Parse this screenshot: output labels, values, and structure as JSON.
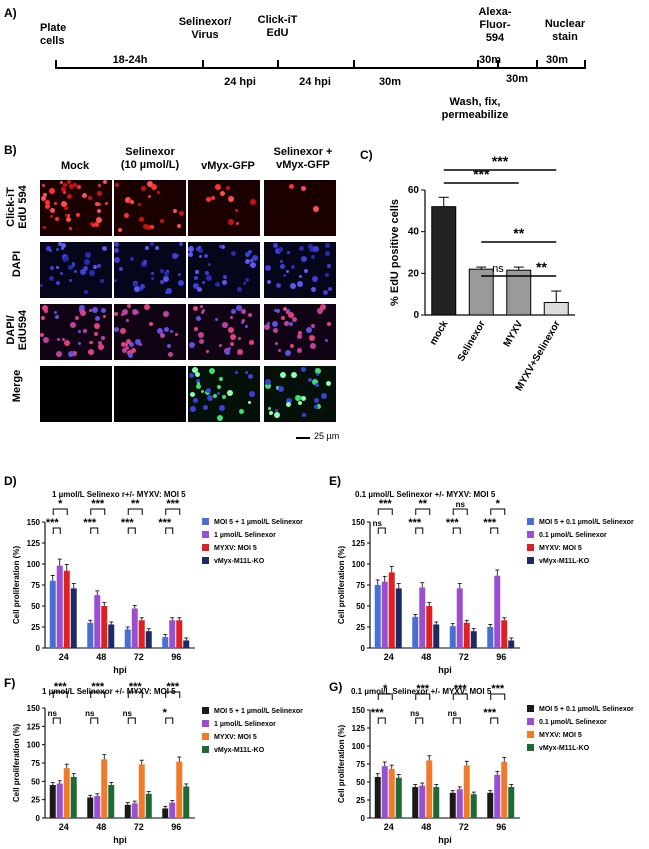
{
  "panel_letters": {
    "a": "A)",
    "b": "B)",
    "c": "C)",
    "d": "D)",
    "e": "E)",
    "f": "F)",
    "g": "G)"
  },
  "timeline": {
    "events_top": [
      "Plate\ncells",
      "Selinexor/\nVirus",
      "Click-iT\nEdU",
      "Alexa-\nFluor-\n594",
      "Nuclear\nstain"
    ],
    "interval_18": "18-24h",
    "interval_24a": "24 hpi",
    "interval_24b": "24 hpi",
    "interval_30a": "30m",
    "interval_30b": "30m",
    "interval_30c": "30m",
    "interval_30d": "30m",
    "wash": "Wash, fix,\npermeabilize"
  },
  "microscopy": {
    "columns": [
      "Mock",
      "Selinexor\n(10 µmol/L)",
      "vMyx-GFP",
      "Selinexor +\nvMyx-GFP"
    ],
    "rows": [
      "Click-iT\nEdU 594",
      "DAPI",
      "DAPI/\nEdU594",
      "Merge"
    ],
    "scale_bar": "25 µm"
  },
  "chart_data": [
    {
      "id": "C",
      "type": "bar",
      "categories": [
        "mock",
        "Selinexor",
        "MYXV",
        "MYXV+Selinexor"
      ],
      "values": [
        52,
        22,
        21.5,
        6
      ],
      "errors": [
        4.5,
        1,
        1.5,
        5.5
      ],
      "colors": [
        "#222222",
        "#9a9a9a",
        "#9a9a9a",
        "#dddddd"
      ],
      "ylabel": "% EdU positive cells",
      "ylim": [
        0,
        60
      ],
      "yticks": [
        0,
        20,
        40,
        60
      ],
      "significance": [
        {
          "from": 0,
          "to": 3,
          "label": "***"
        },
        {
          "from": 0,
          "to": 2,
          "label": "***"
        },
        {
          "from": 1,
          "to": 3,
          "label": "**"
        },
        {
          "from": 1,
          "to": 2,
          "label": "ns"
        },
        {
          "from": 2,
          "to": 3,
          "label": "**"
        }
      ]
    },
    {
      "id": "D",
      "type": "bar",
      "title": "1 µmol/L Selinexo r+/- MYXV: MOI 5",
      "categories": [
        "24",
        "48",
        "72",
        "96"
      ],
      "xlabel": "hpi",
      "ylabel": "Cell proliferation (%)",
      "ylim": [
        0,
        150
      ],
      "yticks": [
        0,
        25,
        50,
        75,
        100,
        125,
        150
      ],
      "series": [
        {
          "name": "MOI 5 + 1 µmol/L Selinexor",
          "color": "#4a6fd4",
          "values": [
            80,
            30,
            22,
            13
          ]
        },
        {
          "name": "1 µmol/L Selinexor",
          "color": "#9b4fd0",
          "values": [
            98,
            63,
            47,
            33
          ]
        },
        {
          "name": "MYXV: MOI 5",
          "color": "#e02020",
          "values": [
            92,
            50,
            33,
            33
          ]
        },
        {
          "name": "vMyx-M11L-KO",
          "color": "#1c2a66",
          "values": [
            71,
            28,
            20,
            9
          ]
        }
      ],
      "sig_top": [
        "*",
        "***",
        "**",
        "***"
      ],
      "sig_bottom": [
        "***",
        "***",
        "***",
        "***"
      ]
    },
    {
      "id": "E",
      "type": "bar",
      "title": "0.1 µmol/L Selinexor +/- MYXV: MOI 5",
      "categories": [
        "24",
        "48",
        "72",
        "96"
      ],
      "xlabel": "hpi",
      "ylabel": "Cell proliferation (%)",
      "ylim": [
        0,
        150
      ],
      "yticks": [
        0,
        25,
        50,
        75,
        100,
        125,
        150
      ],
      "series": [
        {
          "name": "MOI 5 + 0.1 µmol/L Selinexor",
          "color": "#4a6fd4",
          "values": [
            75,
            37,
            26,
            25
          ]
        },
        {
          "name": "0.1 µmol/L Selinexor",
          "color": "#9b4fd0",
          "values": [
            79,
            72,
            71,
            86
          ]
        },
        {
          "name": "MYXV: MOI 5",
          "color": "#e02020",
          "values": [
            90,
            50,
            30,
            33
          ]
        },
        {
          "name": "vMyx-M11L-KO",
          "color": "#1c2a66",
          "values": [
            71,
            28,
            20,
            9
          ]
        }
      ],
      "sig_top": [
        "***",
        "**",
        "ns",
        "*"
      ],
      "sig_bottom": [
        "ns",
        "***",
        "***",
        "***"
      ]
    },
    {
      "id": "F",
      "type": "bar",
      "title": "1 µmol/L Selinexor +/- MYXV: MOI 5",
      "categories": [
        "24",
        "48",
        "72",
        "96"
      ],
      "xlabel": "hpi",
      "ylabel": "Cell proliferation (%)",
      "ylim": [
        0,
        150
      ],
      "yticks": [
        0,
        25,
        50,
        75,
        100,
        125,
        150
      ],
      "series": [
        {
          "name": "MOI 5 + 1 µmol/L Selinexor",
          "color": "#1a1a1a",
          "values": [
            45,
            28,
            18,
            13
          ]
        },
        {
          "name": "1 µmol/L Selinexor",
          "color": "#9b4fd0",
          "values": [
            47,
            30,
            20,
            21
          ]
        },
        {
          "name": "MYXV: MOI 5",
          "color": "#f07a2a",
          "values": [
            68,
            80,
            73,
            77
          ]
        },
        {
          "name": "vMyx-M11L-KO",
          "color": "#1f6a34",
          "values": [
            56,
            45,
            33,
            43
          ]
        }
      ],
      "sig_top": [
        "***",
        "***",
        "***",
        "***"
      ],
      "sig_bottom": [
        "ns",
        "ns",
        "ns",
        "*"
      ]
    },
    {
      "id": "G",
      "type": "bar",
      "title": "0.1 µmol/L Selinexor +/- MYXV: MOI 5",
      "categories": [
        "24",
        "48",
        "72",
        "96"
      ],
      "xlabel": "hpi",
      "ylabel": "Cell proliferation (%)",
      "ylim": [
        0,
        150
      ],
      "yticks": [
        0,
        25,
        50,
        75,
        100,
        125,
        150
      ],
      "series": [
        {
          "name": "MOI 5 + 0.1 µmol/L Selinexor",
          "color": "#1a1a1a",
          "values": [
            57,
            43,
            35,
            35
          ]
        },
        {
          "name": "0.1 µmol/L Selinexor",
          "color": "#9b4fd0",
          "values": [
            72,
            45,
            40,
            60
          ]
        },
        {
          "name": "MYXV: MOI 5",
          "color": "#f07a2a",
          "values": [
            68,
            80,
            73,
            78
          ]
        },
        {
          "name": "vMyx-M11L-KO",
          "color": "#1f6a34",
          "values": [
            56,
            43,
            33,
            43
          ]
        }
      ],
      "sig_top": [
        "*",
        "***",
        "***",
        "***"
      ],
      "sig_bottom": [
        "***",
        "ns",
        "ns",
        "***"
      ]
    }
  ]
}
